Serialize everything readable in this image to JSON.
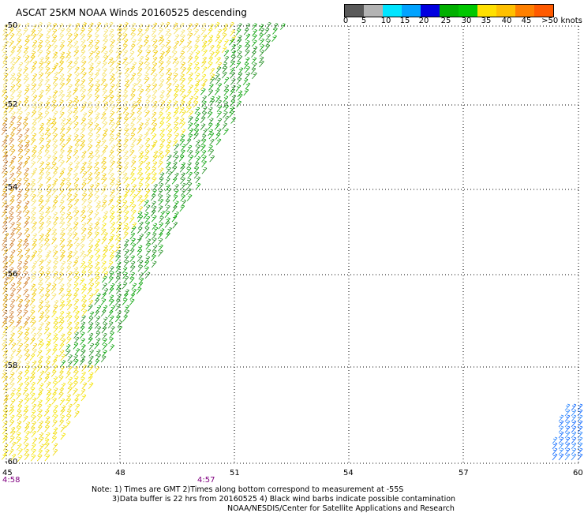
{
  "title": "ASCAT 25KM NOAA Winds 20160525 descending",
  "legend": {
    "colors": [
      "#595959",
      "#b3b3b3",
      "#00e5ff",
      "#00a3ff",
      "#0000e0",
      "#00b000",
      "#00c800",
      "#ffe000",
      "#ffc000",
      "#ff8000",
      "#ff5a00",
      "#e00000",
      "#ff3030",
      "#8b4513",
      "#c06040",
      "#ff00ff",
      "#c000c0",
      "#8000b0",
      "#400080"
    ],
    "labels": [
      "0",
      "5",
      "10",
      "15",
      "20",
      "25",
      "30",
      "35",
      "40",
      "45",
      ">50 knots"
    ]
  },
  "axes": {
    "lon_labels": [
      "45",
      "48",
      "51",
      "54",
      "57",
      "60"
    ],
    "lat_labels": [
      "-50",
      "-52",
      "-54",
      "-56",
      "-58",
      "-60"
    ],
    "lon_range": [
      45,
      60
    ],
    "lat_range": [
      -60,
      -50
    ]
  },
  "time_labels": [
    "4:58",
    "4:57"
  ],
  "notes": [
    "Note: 1) Times are GMT 2)Times along bottom correspond to measurement at -55S",
    "3)Data buffer is 22 hrs from 20160525 4) Black wind barbs indicate possible contamination",
    "NOAA/NESDIS/Center for Satellite Applications and Research"
  ]
}
